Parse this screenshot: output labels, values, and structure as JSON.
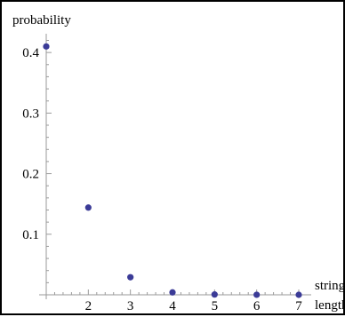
{
  "chart_data": {
    "type": "scatter",
    "ylabel": "probability",
    "xlabel_lines": [
      "string",
      "length"
    ],
    "xlim": [
      1,
      7
    ],
    "ylim": [
      0,
      0.42
    ],
    "x_ticks": [
      2,
      3,
      4,
      5,
      6,
      7
    ],
    "x_tick_labels": [
      "2",
      "3",
      "4",
      "5",
      "6",
      "7"
    ],
    "y_ticks": [
      0.1,
      0.2,
      0.3,
      0.4
    ],
    "y_tick_labels": [
      "0.1",
      "0.2",
      "0.3",
      "0.4"
    ],
    "points": [
      {
        "x": 1,
        "y": 0.41
      },
      {
        "x": 2,
        "y": 0.144
      },
      {
        "x": 3,
        "y": 0.029
      },
      {
        "x": 4,
        "y": 0.004
      },
      {
        "x": 5,
        "y": 0.0005
      },
      {
        "x": 6,
        "y": 0.0001
      },
      {
        "x": 7,
        "y": 0.0
      }
    ],
    "grid": false,
    "colors": {
      "point": "#3b3b97",
      "axis": "#9a9a9a"
    }
  }
}
